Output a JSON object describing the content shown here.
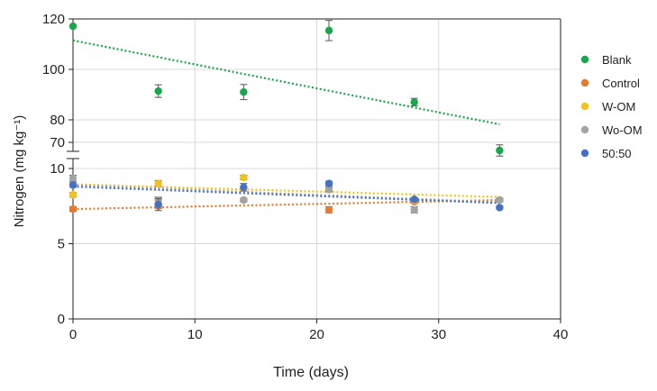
{
  "chart_data": {
    "type": "scatter",
    "xlabel": "Time (days)",
    "ylabel": "Nitrogen (mg kg⁻¹)",
    "xlim": [
      0,
      40
    ],
    "ylim_lower": [
      0,
      10
    ],
    "ylim_upper": [
      70,
      120
    ],
    "broken_axis": true,
    "grid": true,
    "legend_position": "right",
    "x_ticks": [
      "0",
      "10",
      "20",
      "30",
      "40"
    ],
    "y_ticks_lower": [
      "0",
      "5",
      "10"
    ],
    "y_ticks_upper": [
      "70",
      "80",
      "100",
      "120"
    ],
    "x": [
      0,
      7,
      14,
      21,
      28,
      35
    ],
    "series": [
      {
        "name": "Blank",
        "color": "#1aa64b",
        "values": [
          117.1,
          91.4,
          91,
          115.4,
          87,
          66.4
        ],
        "errors": [
          0,
          2.5,
          3,
          4,
          1.5,
          2.5
        ],
        "trend": [
          111.5,
          78
        ]
      },
      {
        "name": "Control",
        "color": "#e8792f",
        "values": [
          7.3,
          7.5,
          7.9,
          7.25,
          7.8,
          7.9
        ],
        "errors": [
          0.15,
          0.15,
          0.1,
          0.2,
          0.1,
          0.1
        ],
        "trend": [
          7.3,
          7.9
        ]
      },
      {
        "name": "W-OM",
        "color": "#f4c21a",
        "values": [
          8.25,
          9.0,
          9.4,
          8.6,
          7.9,
          7.9
        ],
        "errors": [
          0.15,
          0.2,
          0.15,
          0.15,
          0.1,
          0.1
        ],
        "trend": [
          8.95,
          8.1
        ]
      },
      {
        "name": "Wo-OM",
        "color": "#a3a3a3",
        "values": [
          9.35,
          7.9,
          7.9,
          8.6,
          7.25,
          7.9
        ],
        "errors": [
          0.2,
          0.2,
          0.1,
          0.15,
          0.2,
          0.1
        ],
        "trend": [
          8.9,
          7.75
        ]
      },
      {
        "name": "50:50",
        "color": "#4571c4",
        "values": [
          8.9,
          7.6,
          8.75,
          9.0,
          7.95,
          7.4
        ],
        "errors": [
          0.15,
          0.4,
          0.25,
          0.15,
          0.1,
          0.1
        ],
        "trend": [
          8.8,
          7.7
        ]
      }
    ]
  }
}
